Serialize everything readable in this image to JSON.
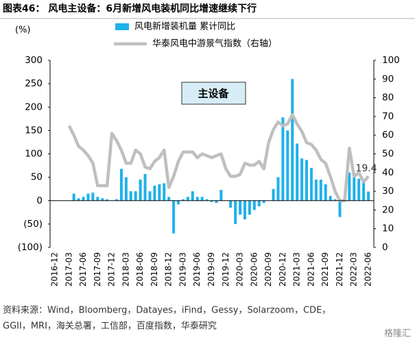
{
  "chart_data": {
    "type": "bar_line",
    "title": "图表46：  风电主设备：6月新增风电装机同比增速继续下行",
    "y_unit": "(%)",
    "annotation": "主设备",
    "source": [
      "资料来源：Wind，Bloomberg，Datayes，iFind，Gessy，Solarzoom，CDE，",
      "GGII，MRI，海关总署，工信部，百度指数，华泰研究"
    ],
    "watermark": "格隆汇",
    "categories": [
      "2016-12",
      null,
      null,
      "2017-03",
      null,
      null,
      "2017-06",
      null,
      null,
      "2017-09",
      null,
      null,
      "2017-12",
      null,
      null,
      "2018-03",
      null,
      null,
      "2018-06",
      null,
      null,
      "2018-09",
      null,
      null,
      "2018-12",
      null,
      null,
      "2019-03",
      null,
      null,
      "2019-06",
      null,
      null,
      "2019-09",
      null,
      null,
      "2019-12",
      null,
      null,
      "2020-03",
      null,
      null,
      "2020-06",
      null,
      null,
      "2020-09",
      null,
      null,
      "2020-12",
      null,
      null,
      "2021-03",
      null,
      null,
      "2021-06",
      null,
      null,
      "2021-09",
      null,
      null,
      "2021-12",
      null,
      null,
      "2022-03",
      null,
      null,
      "2022-06"
    ],
    "series": [
      {
        "name": "风电新增装机量 累计同比",
        "type": "bar",
        "color": "#1fb1ea",
        "values": [
          null,
          null,
          null,
          null,
          15,
          5,
          8,
          15,
          17,
          8,
          5,
          3,
          null,
          3,
          68,
          50,
          20,
          20,
          45,
          57,
          20,
          32,
          35,
          37,
          8,
          -70,
          -8,
          3,
          8,
          20,
          8,
          8,
          3,
          -3,
          -5,
          23,
          null,
          -15,
          -50,
          -30,
          -40,
          -30,
          -20,
          -12,
          -5,
          null,
          25,
          50,
          178,
          150,
          260,
          122,
          90,
          87,
          70,
          45,
          45,
          35,
          10,
          3,
          -35,
          null,
          60,
          50,
          47,
          42,
          19.4
        ]
      },
      {
        "name": "华泰风电中游景气指数（右轴）",
        "type": "line",
        "axis": "y2",
        "color": "#bfbfbf",
        "values": [
          null,
          null,
          null,
          65,
          60,
          54,
          52,
          49,
          45,
          33,
          33,
          33,
          61,
          57,
          52,
          45,
          45,
          52,
          50,
          43,
          42,
          46,
          48,
          52,
          32,
          38,
          46,
          51,
          51,
          51,
          48,
          50,
          49,
          48,
          49,
          50,
          42,
          38,
          38,
          39,
          45,
          44,
          44,
          46,
          42,
          56,
          63,
          67,
          65,
          66,
          71,
          66,
          62,
          56,
          55,
          52,
          47,
          45,
          38,
          30,
          25,
          25,
          53,
          38,
          40,
          35,
          38
        ]
      }
    ],
    "ylim": [
      -100,
      300
    ],
    "yticks": [
      {
        "value": -100,
        "label": "(100)"
      },
      {
        "value": -50,
        "label": "(50)"
      },
      0,
      50,
      100,
      150,
      200,
      250,
      300
    ],
    "y2lim": [
      0,
      100
    ],
    "y2ticks": [
      0,
      10,
      20,
      30,
      40,
      50,
      60,
      70,
      80,
      90,
      100
    ]
  }
}
